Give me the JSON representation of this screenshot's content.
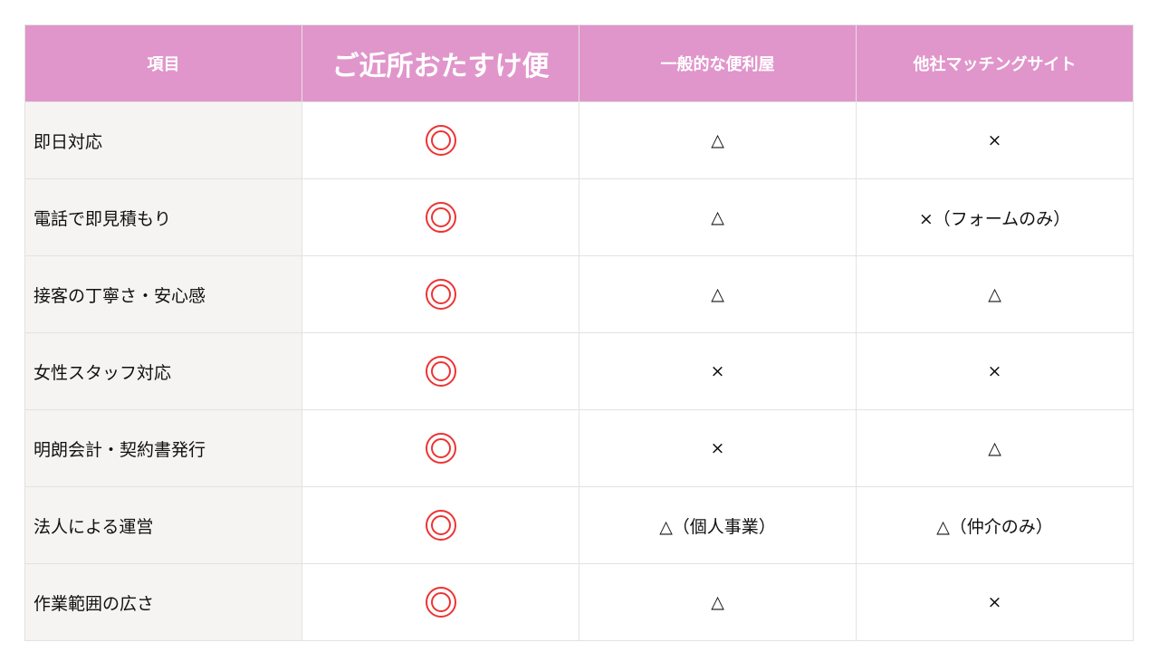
{
  "colors": {
    "header_bg": "#e096cb",
    "label_bg": "#f5f4f2",
    "mark_red": "#ee3333"
  },
  "headers": [
    "項目",
    "ご近所おたすけ便",
    "一般的な便利屋",
    "他社マッチングサイト"
  ],
  "rows": [
    {
      "label": "即日対応",
      "ours": "double-circle",
      "general": "△",
      "matching": "×"
    },
    {
      "label": "電話で即見積もり",
      "ours": "double-circle",
      "general": "△",
      "matching": "×（フォームのみ）"
    },
    {
      "label": "接客の丁寧さ・安心感",
      "ours": "double-circle",
      "general": "△",
      "matching": "△"
    },
    {
      "label": "女性スタッフ対応",
      "ours": "double-circle",
      "general": "×",
      "matching": "×"
    },
    {
      "label": "明朗会計・契約書発行",
      "ours": "double-circle",
      "general": "×",
      "matching": "△"
    },
    {
      "label": "法人による運営",
      "ours": "double-circle",
      "general": "△（個人事業）",
      "matching": "△（仲介のみ）"
    },
    {
      "label": "作業範囲の広さ",
      "ours": "double-circle",
      "general": "△",
      "matching": "×"
    }
  ]
}
